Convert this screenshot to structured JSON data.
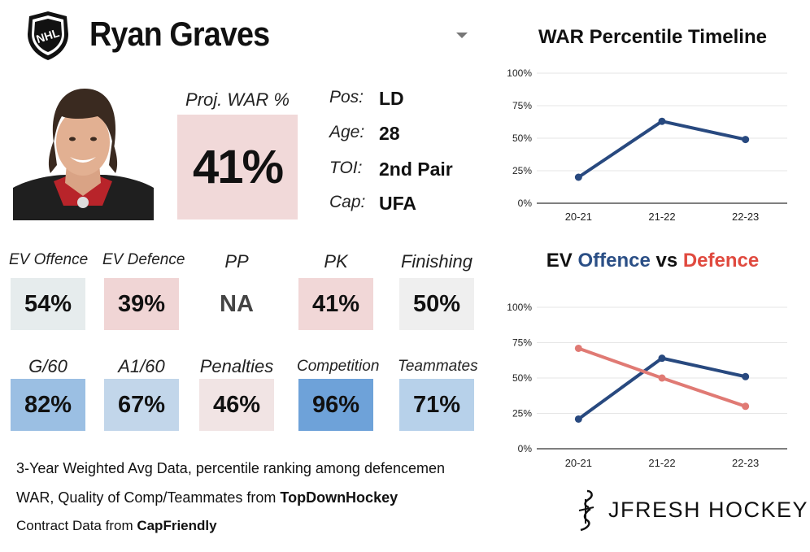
{
  "header": {
    "player_name": "Ryan Graves",
    "logo_icon": "nhl-shield-icon",
    "dropdown_icon": "chevron-down-icon"
  },
  "headshot": {
    "icon": "player-headshot"
  },
  "projection": {
    "label": "Proj. WAR %",
    "value": "41%",
    "color": "#f1d9d9"
  },
  "info": [
    {
      "label": "Pos:",
      "value": "LD"
    },
    {
      "label": "Age:",
      "value": "28"
    },
    {
      "label": "TOI:",
      "value": "2nd Pair"
    },
    {
      "label": "Cap:",
      "value": "UFA"
    }
  ],
  "tiles_row1": [
    {
      "label": "EV Offence",
      "value": "54%",
      "color": "#e6eced"
    },
    {
      "label": "EV Defence",
      "value": "39%",
      "color": "#f0d5d5"
    },
    {
      "label": "PP",
      "value": "NA",
      "color": "#ffffff"
    },
    {
      "label": "PK",
      "value": "41%",
      "color": "#f1d7d7"
    },
    {
      "label": "Finishing",
      "value": "50%",
      "color": "#efefef"
    }
  ],
  "tiles_row2": [
    {
      "label": "G/60",
      "value": "82%",
      "color": "#9bbfe3"
    },
    {
      "label": "A1/60",
      "value": "67%",
      "color": "#c2d6ea"
    },
    {
      "label": "Penalties",
      "value": "46%",
      "color": "#f1e4e4"
    },
    {
      "label": "Competition",
      "value": "96%",
      "color": "#6ea2d9"
    },
    {
      "label": "Teammates",
      "value": "71%",
      "color": "#b7d1ea"
    }
  ],
  "footer": {
    "line1": "3-Year Weighted Avg Data, percentile ranking among defencemen",
    "line2_prefix": "WAR, Quality of Comp/Teammates from ",
    "line2_source": "TopDownHockey",
    "line3_prefix": "Contract Data from ",
    "line3_source": "CapFriendly"
  },
  "brand": {
    "text": "JFRESH HOCKEY",
    "icon": "jfresh-logo-icon"
  },
  "chart_data": [
    {
      "type": "line",
      "title": "WAR Percentile Timeline",
      "categories": [
        "20-21",
        "21-22",
        "22-23"
      ],
      "yticks": [
        "0%",
        "25%",
        "50%",
        "75%",
        "100%"
      ],
      "ylim": [
        0,
        100
      ],
      "grid": true,
      "series": [
        {
          "values": [
            20,
            63,
            49
          ],
          "color": "#28497f"
        }
      ]
    },
    {
      "type": "line",
      "title_parts": [
        {
          "text": "EV ",
          "color": "#111111"
        },
        {
          "text": "Offence",
          "color": "#2b4f86"
        },
        {
          "text": " vs ",
          "color": "#111111"
        },
        {
          "text": "Defence",
          "color": "#e04a3f"
        }
      ],
      "categories": [
        "20-21",
        "21-22",
        "22-23"
      ],
      "yticks": [
        "0%",
        "25%",
        "50%",
        "75%",
        "100%"
      ],
      "ylim": [
        0,
        100
      ],
      "grid": true,
      "series": [
        {
          "name": "Offence",
          "values": [
            21,
            64,
            51
          ],
          "color": "#28497f"
        },
        {
          "name": "Defence",
          "values": [
            71,
            50,
            30
          ],
          "color": "#e07a74"
        }
      ]
    }
  ]
}
